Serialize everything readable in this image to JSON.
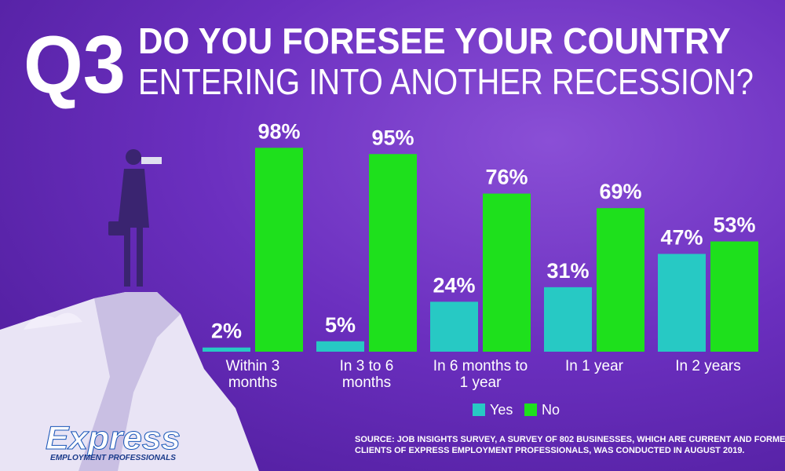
{
  "question_number": "Q3",
  "title_lines": [
    "DO YOU FORESEE YOUR COUNTRY",
    "ENTERING INTO ANOTHER RECESSION?"
  ],
  "chart_data": {
    "type": "bar",
    "categories": [
      "Within 3 months",
      "In 3 to 6 months",
      "In 6 months to 1 year",
      "In 1 year",
      "In 2 years"
    ],
    "series": [
      {
        "name": "Yes",
        "color": "#27c9c4",
        "values": [
          2,
          5,
          24,
          31,
          47
        ],
        "value_labels": [
          "2%",
          "5%",
          "24%",
          "31%",
          "47%"
        ]
      },
      {
        "name": "No",
        "color": "#1ee01c",
        "values": [
          98,
          95,
          76,
          69,
          53
        ],
        "value_labels": [
          "98%",
          "95%",
          "76%",
          "69%",
          "53%"
        ]
      }
    ],
    "ylim": [
      0,
      100
    ]
  },
  "source_lines": [
    "SOURCE: JOB INSIGHTS SURVEY, A SURVEY OF 802 BUSINESSES, WHICH ARE CURRENT AND FORMER",
    "CLIENTS OF EXPRESS EMPLOYMENT PROFESSIONALS, WAS CONDUCTED IN AUGUST 2019."
  ],
  "logo": {
    "name": "Express",
    "tagline": "EMPLOYMENT PROFESSIONALS"
  }
}
